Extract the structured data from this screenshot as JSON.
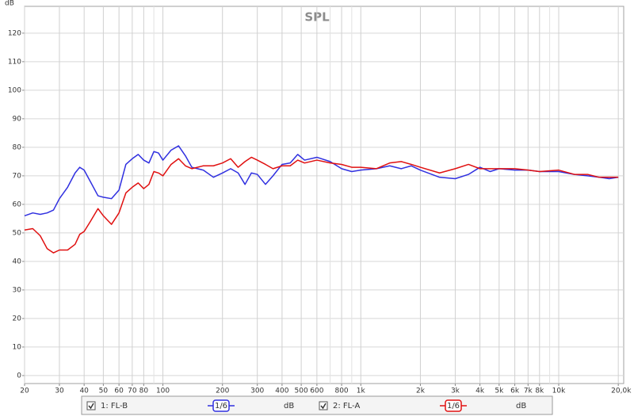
{
  "chart_data": {
    "type": "line",
    "title": "SPL",
    "y_label": "dB",
    "log_x": true,
    "grid": true,
    "xlim": [
      20,
      21300
    ],
    "ylim": [
      -2.8,
      129.4
    ],
    "yticks": [
      0,
      10,
      20,
      30,
      40,
      50,
      60,
      70,
      80,
      90,
      100,
      110,
      120
    ],
    "xticks": [
      20,
      30,
      40,
      50,
      60,
      70,
      80,
      100,
      200,
      300,
      400,
      500,
      600,
      800,
      {
        "value": 1000,
        "label": "1k"
      },
      {
        "value": 2000,
        "label": "2k"
      },
      {
        "value": 3000,
        "label": "3k"
      },
      {
        "value": 4000,
        "label": "4k"
      },
      {
        "value": 5000,
        "label": "5k"
      },
      {
        "value": 6000,
        "label": "6k"
      },
      {
        "value": 7000,
        "label": "7k"
      },
      {
        "value": 8000,
        "label": "8k"
      },
      {
        "value": 10000,
        "label": "10k"
      },
      {
        "value": 20000,
        "label": "20,0k Hz"
      }
    ],
    "xminor": [
      90,
      700,
      900,
      9000
    ],
    "x": [
      20,
      22,
      24,
      26,
      28,
      30,
      33,
      36,
      38,
      40,
      43,
      47,
      50,
      55,
      60,
      65,
      70,
      75,
      80,
      85,
      90,
      95,
      100,
      110,
      120,
      130,
      140,
      160,
      180,
      200,
      220,
      240,
      260,
      280,
      300,
      330,
      360,
      400,
      440,
      480,
      520,
      600,
      700,
      800,
      900,
      1000,
      1200,
      1400,
      1600,
      1800,
      2000,
      2500,
      3000,
      3500,
      4000,
      4500,
      5000,
      6000,
      7000,
      8000,
      10000,
      12000,
      14000,
      16000,
      18000,
      20000
    ],
    "series": [
      {
        "name": "1: FL-B",
        "color": "#3030e0",
        "smoothing": "1/6",
        "unit": "dB",
        "values": [
          56,
          57,
          56.5,
          57,
          58,
          62,
          66,
          71,
          73,
          72,
          68,
          63,
          62.5,
          62,
          65,
          74,
          76,
          77.5,
          75.5,
          74.5,
          78.5,
          78,
          75.5,
          79,
          80.5,
          77,
          73,
          72,
          69.5,
          71,
          72.5,
          71,
          67,
          71,
          70.5,
          67,
          70,
          74,
          74.5,
          77.5,
          75.5,
          76.5,
          75,
          72.5,
          71.5,
          72,
          72.5,
          73.5,
          72.5,
          73.5,
          72,
          69.5,
          69,
          70.5,
          73,
          71.5,
          72.5,
          72,
          72,
          71.5,
          71.5,
          70.5,
          70,
          69.5,
          69,
          69.5
        ]
      },
      {
        "name": "2: FL-A",
        "color": "#e01010",
        "smoothing": "1/6",
        "unit": "dB",
        "values": [
          51,
          51.5,
          49,
          44.5,
          43,
          44,
          44,
          46,
          49.5,
          50.5,
          54,
          58.5,
          56,
          53,
          57,
          64,
          66,
          67.5,
          65.5,
          67,
          71.5,
          71,
          70,
          74,
          76,
          73.5,
          72.5,
          73.5,
          73.5,
          74.5,
          76,
          73,
          75,
          76.5,
          75.5,
          74,
          72.5,
          73.5,
          73.5,
          75.5,
          74.5,
          75.5,
          74.5,
          74,
          73,
          73,
          72.5,
          74.5,
          75,
          74,
          73,
          71,
          72.5,
          74,
          72.5,
          72.5,
          72.5,
          72.5,
          72,
          71.5,
          72,
          70.5,
          70.5,
          69.5,
          69.5,
          69.5
        ]
      }
    ]
  }
}
